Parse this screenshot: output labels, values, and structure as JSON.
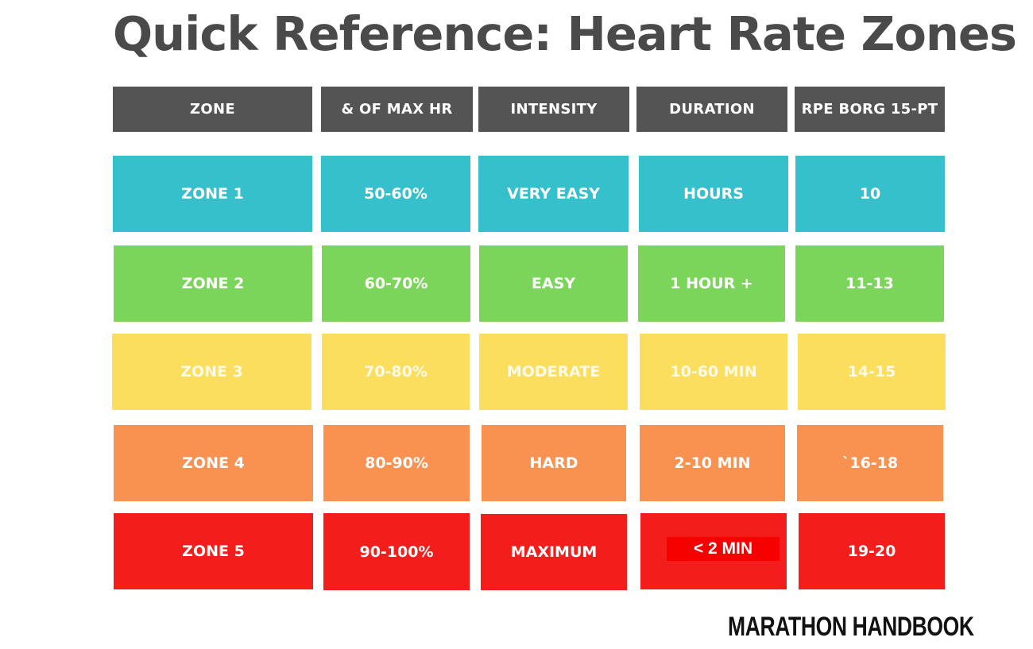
{
  "title": "Quick Reference: Heart Rate Zones",
  "colors": {
    "header": "#545454",
    "zone1": "#35c0cc",
    "zone2": "#7bd55a",
    "zone3": "#fbde5e",
    "zone4": "#f99150",
    "zone5": "#f31e1c"
  },
  "table": {
    "headers": [
      "ZONE",
      "& OF MAX HR",
      "INTENSITY",
      "DURATION",
      "RPE BORG 15-PT"
    ],
    "rows": [
      [
        "ZONE 1",
        "50-60%",
        "VERY EASY",
        "HOURS",
        "10"
      ],
      [
        "ZONE 2",
        "60-70%",
        "EASY",
        "1 HOUR +",
        "11-13"
      ],
      [
        "ZONE 3",
        "70-80%",
        "MODERATE",
        "10-60 MIN",
        "14-15"
      ],
      [
        "ZONE 4",
        "80-90%",
        "HARD",
        "2-10 MIN",
        "`16-18"
      ],
      [
        "ZONE 5",
        "90-100%",
        "MAXIMUM",
        "< 2 MIN",
        "19-20"
      ]
    ]
  },
  "brand": "MARATHON HANDBOOK"
}
